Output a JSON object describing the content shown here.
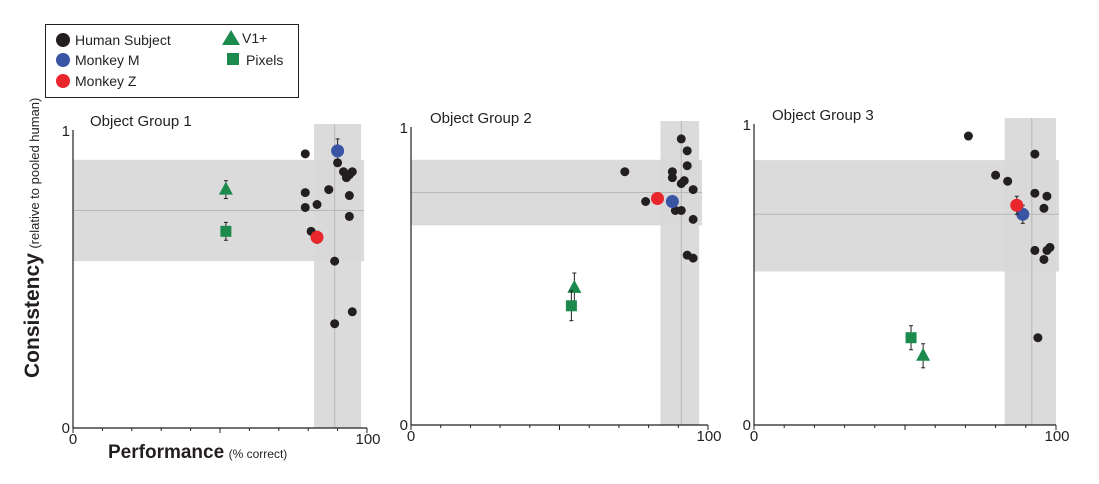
{
  "legend": {
    "items": [
      {
        "label": "Human Subject",
        "marker": "circle",
        "color": "#231f20"
      },
      {
        "label": "V1+",
        "marker": "triangle",
        "color": "#1b8a4c"
      },
      {
        "label": "Monkey M",
        "marker": "circle",
        "color": "#3b55a5"
      },
      {
        "label": "Pixels",
        "marker": "square",
        "color": "#1b8a4c"
      },
      {
        "label": "Monkey Z",
        "marker": "circle",
        "color": "#e8262c"
      }
    ]
  },
  "axes": {
    "ylabel_main": "Consistency",
    "ylabel_sub": "(relative to pooled human)",
    "xlabel_main": "Performance",
    "xlabel_sub": "(% correct)"
  },
  "colors": {
    "human": "#231f20",
    "monkey_m": "#3b55a5",
    "monkey_z": "#e8262c",
    "model": "#1b8a4c",
    "band": "#d9d9d9"
  },
  "chart_data": [
    {
      "type": "scatter",
      "title": "Object Group 1",
      "xlim": [
        0,
        100
      ],
      "ylim": [
        0,
        1
      ],
      "x_ticks": [
        "0",
        "100"
      ],
      "y_ticks": [
        "0",
        "1"
      ],
      "human_band": {
        "x_range": [
          82,
          98
        ],
        "x_mean": 89,
        "y_range": [
          0.56,
          0.9
        ],
        "y_mean": 0.73
      },
      "series": [
        {
          "name": "Human Subject",
          "marker": "circle",
          "points": [
            [
              79,
              0.92
            ],
            [
              79,
              0.79
            ],
            [
              79,
              0.74
            ],
            [
              81,
              0.66
            ],
            [
              83,
              0.75
            ],
            [
              87,
              0.8
            ],
            [
              90,
              0.89
            ],
            [
              92,
              0.86
            ],
            [
              93,
              0.84
            ],
            [
              94,
              0.85
            ],
            [
              94,
              0.78
            ],
            [
              94,
              0.71
            ],
            [
              95,
              0.86
            ],
            [
              89,
              0.56
            ],
            [
              89,
              0.35
            ],
            [
              95,
              0.39
            ]
          ]
        },
        {
          "name": "Monkey M",
          "marker": "circle",
          "points": [
            [
              90,
              0.93
            ]
          ],
          "err": [
            0.04
          ]
        },
        {
          "name": "Monkey Z",
          "marker": "circle",
          "points": [
            [
              83,
              0.64
            ]
          ],
          "err": [
            0.02
          ]
        },
        {
          "name": "V1+",
          "marker": "triangle",
          "points": [
            [
              52,
              0.8
            ]
          ],
          "err": [
            0.03
          ]
        },
        {
          "name": "Pixels",
          "marker": "square",
          "points": [
            [
              52,
              0.66
            ]
          ],
          "err": [
            0.03
          ]
        }
      ]
    },
    {
      "type": "scatter",
      "title": "Object Group 2",
      "xlim": [
        0,
        100
      ],
      "ylim": [
        0,
        1
      ],
      "x_ticks": [
        "0",
        "100"
      ],
      "y_ticks": [
        "1",
        "0"
      ],
      "human_band": {
        "x_range": [
          84,
          97
        ],
        "x_mean": 91,
        "y_range": [
          0.67,
          0.89
        ],
        "y_mean": 0.78
      },
      "series": [
        {
          "name": "Human Subject",
          "marker": "circle",
          "points": [
            [
              72,
              0.85
            ],
            [
              79,
              0.75
            ],
            [
              88,
              0.85
            ],
            [
              88,
              0.83
            ],
            [
              91,
              0.81
            ],
            [
              92,
              0.82
            ],
            [
              91,
              0.96
            ],
            [
              93,
              0.92
            ],
            [
              93,
              0.87
            ],
            [
              95,
              0.79
            ],
            [
              95,
              0.69
            ],
            [
              89,
              0.72
            ],
            [
              91,
              0.72
            ],
            [
              93,
              0.57
            ],
            [
              95,
              0.56
            ]
          ]
        },
        {
          "name": "Monkey M",
          "marker": "circle",
          "points": [
            [
              88,
              0.75
            ]
          ]
        },
        {
          "name": "Monkey Z",
          "marker": "circle",
          "points": [
            [
              83,
              0.76
            ]
          ]
        },
        {
          "name": "V1+",
          "marker": "triangle",
          "points": [
            [
              55,
              0.46
            ]
          ],
          "err": [
            0.05
          ]
        },
        {
          "name": "Pixels",
          "marker": "square",
          "points": [
            [
              54,
              0.4
            ]
          ],
          "err": [
            0.05
          ]
        }
      ]
    },
    {
      "type": "scatter",
      "title": "Object Group 3",
      "xlim": [
        0,
        100
      ],
      "ylim": [
        0,
        1
      ],
      "x_ticks": [
        "0",
        "100"
      ],
      "y_ticks": [
        "1",
        "0"
      ],
      "human_band": {
        "x_range": [
          83,
          100
        ],
        "x_mean": 92,
        "y_range": [
          0.51,
          0.88
        ],
        "y_mean": 0.7
      },
      "series": [
        {
          "name": "Human Subject",
          "marker": "circle",
          "points": [
            [
              71,
              0.96
            ],
            [
              80,
              0.83
            ],
            [
              84,
              0.81
            ],
            [
              93,
              0.9
            ],
            [
              93,
              0.77
            ],
            [
              96,
              0.72
            ],
            [
              97,
              0.76
            ],
            [
              93,
              0.58
            ],
            [
              96,
              0.55
            ],
            [
              97,
              0.58
            ],
            [
              98,
              0.59
            ],
            [
              94,
              0.29
            ]
          ]
        },
        {
          "name": "Monkey M",
          "marker": "circle",
          "points": [
            [
              89,
              0.7
            ]
          ],
          "err": [
            0.03
          ]
        },
        {
          "name": "Monkey Z",
          "marker": "circle",
          "points": [
            [
              87,
              0.73
            ]
          ],
          "err": [
            0.03
          ]
        },
        {
          "name": "V1+",
          "marker": "triangle",
          "points": [
            [
              56,
              0.23
            ]
          ],
          "err": [
            0.04
          ]
        },
        {
          "name": "Pixels",
          "marker": "square",
          "points": [
            [
              52,
              0.29
            ]
          ],
          "err": [
            0.04
          ]
        }
      ]
    }
  ]
}
